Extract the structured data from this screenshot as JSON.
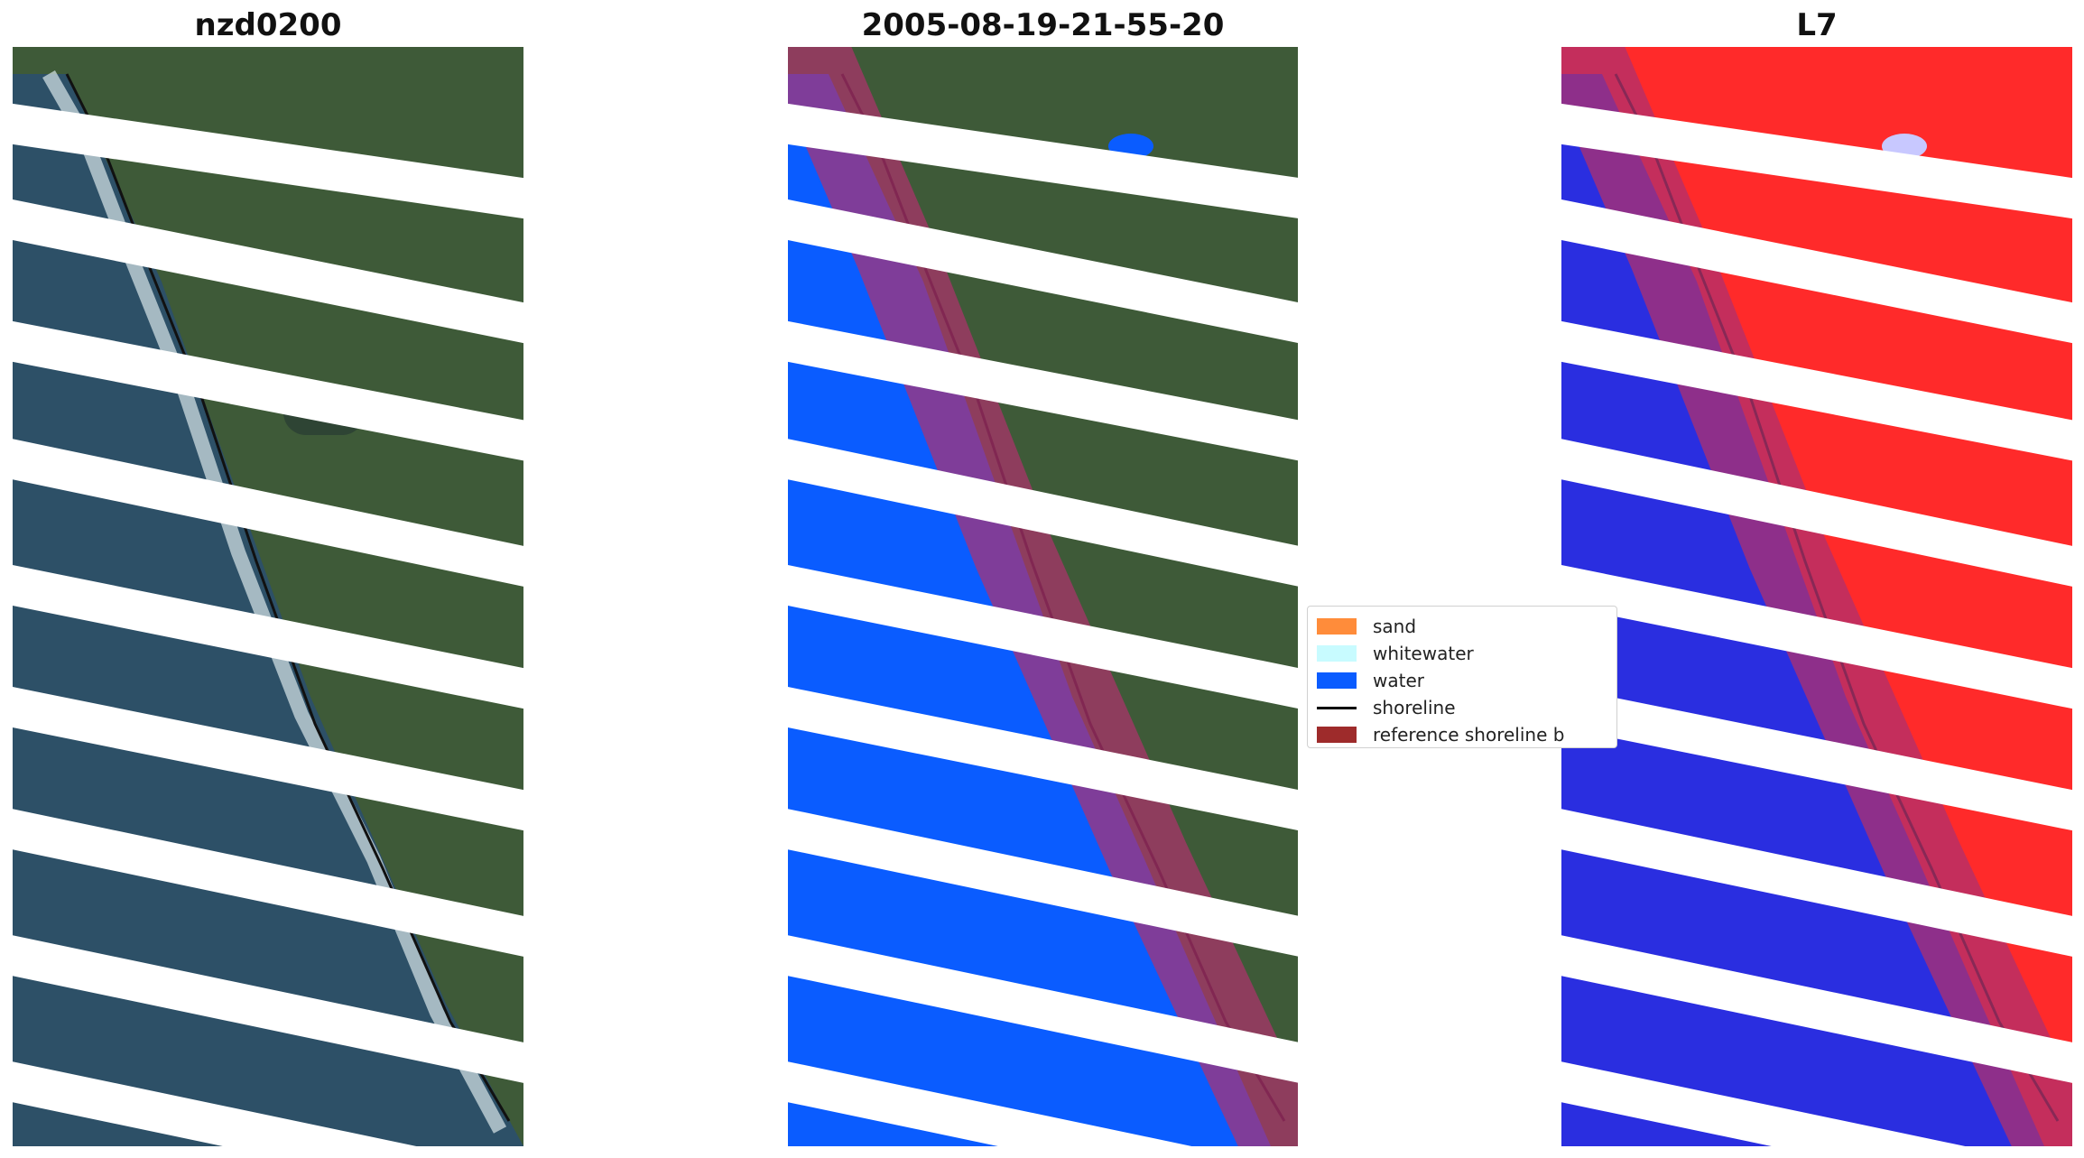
{
  "panels": [
    {
      "title": "nzd0200"
    },
    {
      "title": "2005-08-19-21-55-20"
    },
    {
      "title": "L7"
    }
  ],
  "legend": {
    "items": [
      {
        "label": "sand",
        "color": "#ff8c3a"
      },
      {
        "label": "whitewater",
        "color": "#c8fbff"
      },
      {
        "label": "water",
        "color": "#0a5cff"
      },
      {
        "label": "shoreline",
        "color": "#000000"
      },
      {
        "label": "reference shoreline b",
        "color": "#9e2b2b"
      }
    ]
  },
  "colors": {
    "land": "#3f5a3a",
    "ocean": "#2d5067",
    "classified_water": "#0a5cff",
    "index_land": "#ff1a1a",
    "index_water": "#2a2ee0",
    "buffer": "#b0306e",
    "gap_stripe": "#ffffff"
  }
}
